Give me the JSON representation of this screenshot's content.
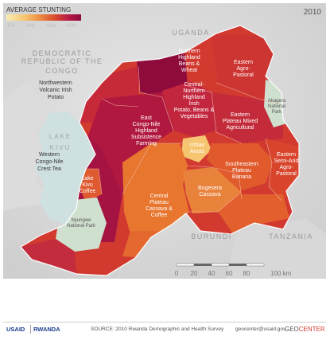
{
  "legend": {
    "title": "AVERAGE STUNTING",
    "ticks": [
      "0%",
      "20%",
      "40%",
      "60%"
    ],
    "gradient": [
      "#f7ecb5",
      "#f6c56f",
      "#ec8a3f",
      "#d94a2e",
      "#b81c45",
      "#8e0b3c"
    ]
  },
  "year": "2010",
  "countries": {
    "uganda": "UGANDA",
    "drc_1": "DEMOCRATIC",
    "drc_2": "REPUBLIC OF THE",
    "drc_3": "CONGO",
    "burundi": "BURUNDI",
    "tanzania": "TANZANIA"
  },
  "lakes": {
    "kivu_1": "LAKE",
    "kivu_2": "KIVU"
  },
  "regions": {
    "nw_volcanic": [
      "Northwestern",
      "Volcanic Irish",
      "Potato"
    ],
    "n_highland": [
      "Northern",
      "Highland",
      "Beans &",
      "Wheat"
    ],
    "e_agro": [
      "Eastern",
      "Agro-",
      "Pastoral"
    ],
    "c_north": [
      "Central-",
      "Northern",
      "Highland",
      "Irish",
      "Potato, Beans &",
      "Vegetables"
    ],
    "east_congo_nile": [
      "East",
      "Congo-Nile",
      "Highland",
      "Subsistence",
      "Farming"
    ],
    "e_plateau": [
      "Eastern",
      "Plateau Mixed",
      "Agricultural"
    ],
    "w_congo_nile": [
      "Western",
      "Congo-Nile",
      "Crest Tea"
    ],
    "urban": [
      "Urban",
      "Areas"
    ],
    "e_semi_arid": [
      "Eastern",
      "Semi-Arid",
      "Agro-",
      "Pastoral"
    ],
    "se_plateau": [
      "Southeastern",
      "Plateau",
      "Banana"
    ],
    "lake_kivu_coffee": [
      "Lake",
      "Kivu",
      "Coffee"
    ],
    "bugesera": [
      "Bugesera",
      "Cassava"
    ],
    "central_plateau": [
      "Central",
      "Plateau",
      "Cassava &",
      "Coffee"
    ],
    "akagera": [
      "Akagera",
      "National",
      "Park"
    ],
    "nyungwe": [
      "Nyungwe",
      "National Park"
    ]
  },
  "scale": {
    "ticks": [
      "0",
      "20",
      "40",
      "60",
      "80",
      "100 km"
    ]
  },
  "footer": {
    "usaid": "USAID",
    "rwanda": "RWANDA",
    "source": "SOURCE: 2010 Rwanda Demographic and Health Survey",
    "email": "geocenter@usaid.gov",
    "geo": "GEO",
    "center": "CENTER"
  },
  "colors": {
    "darkest": "#8e0b3c",
    "dark": "#b81c45",
    "red": "#d23a30",
    "orange_red": "#e05a2c",
    "orange": "#ec8a3f",
    "light": "#f6c56f",
    "park": "#cfe0cf",
    "water": "#cfe0e0"
  }
}
